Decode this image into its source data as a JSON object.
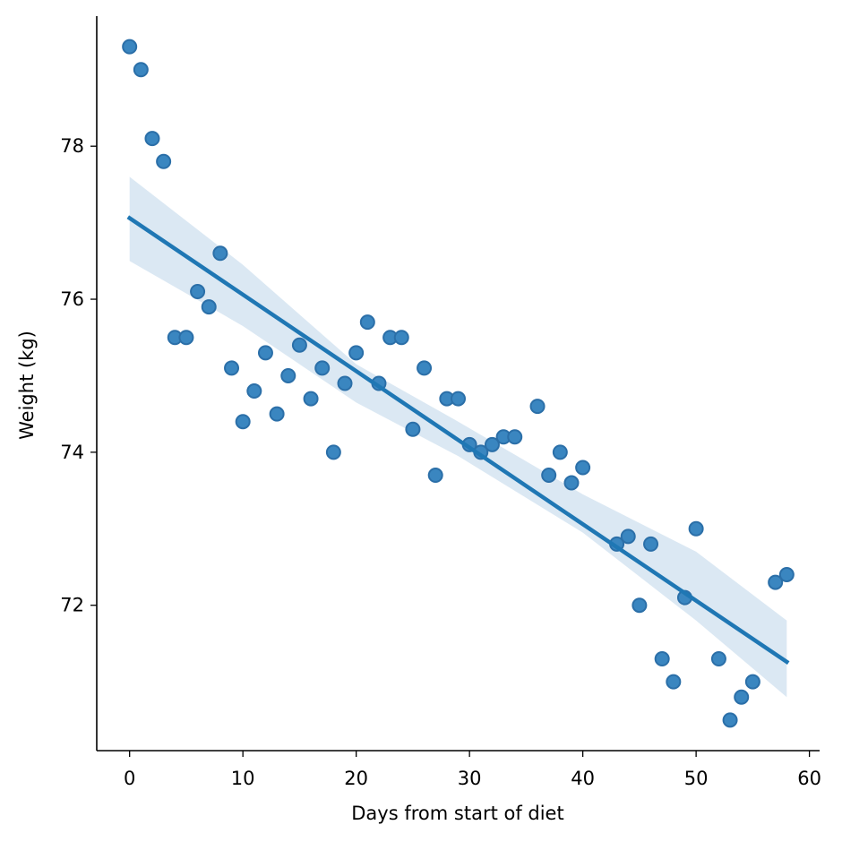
{
  "chart_data": {
    "type": "scatter",
    "title": "",
    "xlabel": "Days from start of diet",
    "ylabel": "Weight (kg)",
    "xlim": [
      -2.9,
      60.9
    ],
    "ylim": [
      70.1,
      79.7
    ],
    "xticks": [
      0,
      10,
      20,
      30,
      40,
      50,
      60
    ],
    "yticks": [
      72,
      74,
      76,
      78
    ],
    "grid": false,
    "legend": "none",
    "colors": {
      "point_fill": "#3a86c0",
      "point_stroke": "#2b6fa8",
      "line": "#1f77b4",
      "band": "#cfe0ef"
    },
    "series": [
      {
        "points": [
          [
            0,
            79.3
          ],
          [
            1,
            79.0
          ],
          [
            2,
            78.1
          ],
          [
            3,
            77.8
          ],
          [
            4,
            75.5
          ],
          [
            5,
            75.5
          ],
          [
            6,
            76.1
          ],
          [
            7,
            75.9
          ],
          [
            8,
            76.6
          ],
          [
            9,
            75.1
          ],
          [
            10,
            74.4
          ],
          [
            11,
            74.8
          ],
          [
            12,
            75.3
          ],
          [
            13,
            74.5
          ],
          [
            14,
            75.0
          ],
          [
            15,
            75.4
          ],
          [
            16,
            74.7
          ],
          [
            17,
            75.1
          ],
          [
            18,
            74.0
          ],
          [
            19,
            74.9
          ],
          [
            20,
            75.3
          ],
          [
            21,
            75.7
          ],
          [
            22,
            74.9
          ],
          [
            23,
            75.5
          ],
          [
            24,
            75.5
          ],
          [
            25,
            74.3
          ],
          [
            26,
            75.1
          ],
          [
            27,
            73.7
          ],
          [
            28,
            74.7
          ],
          [
            29,
            74.7
          ],
          [
            30,
            74.1
          ],
          [
            31,
            74.0
          ],
          [
            32,
            74.1
          ],
          [
            33,
            74.2
          ],
          [
            34,
            74.2
          ],
          [
            36,
            74.6
          ],
          [
            37,
            73.7
          ],
          [
            38,
            74.0
          ],
          [
            39,
            73.6
          ],
          [
            40,
            73.8
          ],
          [
            43,
            72.8
          ],
          [
            44,
            72.9
          ],
          [
            45,
            72.0
          ],
          [
            46,
            72.8
          ],
          [
            47,
            71.3
          ],
          [
            48,
            71.0
          ],
          [
            49,
            72.1
          ],
          [
            50,
            73.0
          ],
          [
            52,
            71.3
          ],
          [
            53,
            70.5
          ],
          [
            54,
            70.8
          ],
          [
            55,
            71.0
          ],
          [
            57,
            72.3
          ],
          [
            58,
            72.4
          ]
        ]
      }
    ],
    "regression": {
      "x": [
        0,
        58
      ],
      "y": [
        77.06,
        71.26
      ],
      "ci_lower": [
        [
          0,
          76.5
        ],
        [
          10,
          75.65
        ],
        [
          20,
          74.65
        ],
        [
          29,
          73.95
        ],
        [
          40,
          72.95
        ],
        [
          50,
          71.8
        ],
        [
          58,
          70.8
        ]
      ],
      "ci_upper": [
        [
          0,
          77.6
        ],
        [
          10,
          76.45
        ],
        [
          20,
          75.15
        ],
        [
          29,
          74.4
        ],
        [
          40,
          73.45
        ],
        [
          50,
          72.7
        ],
        [
          58,
          71.8
        ]
      ]
    }
  }
}
